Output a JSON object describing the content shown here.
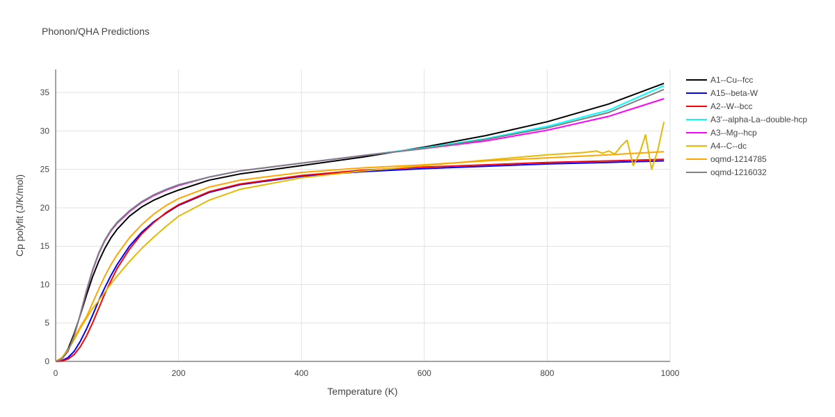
{
  "chart_data": {
    "type": "line",
    "title": "Phonon/QHA Predictions",
    "xlabel": "Temperature (K)",
    "ylabel": "Cp polyfit (J/K/mol)",
    "xlim": [
      0,
      1000
    ],
    "ylim": [
      0,
      38
    ],
    "xticks": [
      0,
      200,
      400,
      600,
      800,
      1000
    ],
    "yticks": [
      0,
      5,
      10,
      15,
      20,
      25,
      30,
      35
    ],
    "grid": true,
    "legend_position": "right",
    "series": [
      {
        "name": "A1--Cu--fcc",
        "color": "#000000",
        "x": [
          0,
          10,
          20,
          30,
          40,
          50,
          60,
          70,
          80,
          90,
          100,
          120,
          140,
          160,
          180,
          200,
          250,
          300,
          400,
          500,
          600,
          700,
          800,
          900,
          990
        ],
        "y": [
          0,
          0.4,
          1.6,
          3.6,
          6.0,
          8.6,
          11.0,
          13.0,
          14.7,
          16.1,
          17.2,
          18.9,
          20.1,
          21.0,
          21.7,
          22.3,
          23.6,
          24.4,
          25.5,
          26.6,
          27.9,
          29.4,
          31.2,
          33.5,
          36.2
        ]
      },
      {
        "name": "A15--beta-W",
        "color": "#0000ff",
        "x": [
          0,
          10,
          20,
          30,
          40,
          50,
          60,
          70,
          80,
          90,
          100,
          120,
          140,
          160,
          180,
          200,
          250,
          300,
          400,
          500,
          600,
          700,
          800,
          900,
          990
        ],
        "y": [
          0,
          0.1,
          0.5,
          1.3,
          2.6,
          4.2,
          6.0,
          7.9,
          9.6,
          11.2,
          12.6,
          15.0,
          16.8,
          18.2,
          19.3,
          20.3,
          22.0,
          23.0,
          24.1,
          24.7,
          25.1,
          25.4,
          25.7,
          25.9,
          26.1
        ]
      },
      {
        "name": "A2--W--bcc",
        "color": "#ff0000",
        "x": [
          0,
          10,
          20,
          30,
          40,
          50,
          60,
          70,
          80,
          90,
          100,
          120,
          140,
          160,
          180,
          200,
          250,
          300,
          400,
          500,
          600,
          700,
          800,
          900,
          990
        ],
        "y": [
          0,
          0.05,
          0.3,
          0.9,
          1.9,
          3.3,
          5.0,
          6.9,
          8.8,
          10.5,
          12.1,
          14.6,
          16.6,
          18.1,
          19.4,
          20.4,
          22.1,
          23.1,
          24.2,
          24.9,
          25.3,
          25.6,
          25.9,
          26.1,
          26.3
        ]
      },
      {
        "name": "A3'--alpha-La--double-hcp",
        "color": "#00ffff",
        "x": [
          0,
          10,
          20,
          30,
          40,
          50,
          60,
          70,
          80,
          90,
          100,
          120,
          140,
          160,
          180,
          200,
          250,
          300,
          400,
          500,
          600,
          700,
          800,
          900,
          990
        ],
        "y": [
          0,
          0.3,
          1.3,
          3.3,
          6.1,
          9.2,
          11.9,
          14.1,
          15.8,
          17.1,
          18.1,
          19.6,
          20.8,
          21.7,
          22.4,
          23.0,
          24.0,
          24.8,
          25.8,
          26.8,
          27.8,
          29.0,
          30.6,
          32.7,
          35.9
        ]
      },
      {
        "name": "A3--Mg--hcp",
        "color": "#ff00ff",
        "x": [
          0,
          10,
          20,
          30,
          40,
          50,
          60,
          70,
          80,
          90,
          100,
          120,
          140,
          160,
          180,
          200,
          250,
          300,
          400,
          500,
          600,
          700,
          800,
          900,
          990
        ],
        "y": [
          0,
          0.3,
          1.3,
          3.3,
          6.1,
          9.1,
          11.8,
          14.0,
          15.7,
          17.0,
          18.0,
          19.5,
          20.7,
          21.6,
          22.3,
          22.9,
          24.0,
          24.8,
          25.8,
          26.8,
          27.7,
          28.7,
          30.1,
          31.9,
          34.2
        ]
      },
      {
        "name": "A4--C--dc",
        "color": "#e6b800",
        "x": [
          0,
          10,
          20,
          30,
          40,
          50,
          60,
          70,
          80,
          90,
          100,
          120,
          140,
          160,
          180,
          200,
          250,
          300,
          400,
          500,
          600,
          700,
          800,
          860,
          880,
          890,
          900,
          910,
          920,
          930,
          940,
          950,
          960,
          970,
          980,
          990
        ],
        "y": [
          0,
          0.5,
          1.5,
          2.8,
          4.3,
          5.6,
          6.9,
          7.9,
          9.0,
          10.1,
          11.1,
          13.0,
          14.7,
          16.2,
          17.6,
          18.9,
          21.0,
          22.4,
          23.9,
          24.8,
          25.5,
          26.2,
          26.9,
          27.2,
          27.4,
          27.1,
          27.4,
          27.0,
          28.0,
          28.8,
          25.5,
          27.0,
          29.5,
          25.0,
          27.5,
          31.2
        ]
      },
      {
        "name": "oqmd-1214785",
        "color": "#ffa500",
        "x": [
          0,
          10,
          20,
          30,
          40,
          50,
          60,
          70,
          80,
          90,
          100,
          120,
          140,
          160,
          180,
          200,
          250,
          300,
          400,
          500,
          600,
          700,
          800,
          900,
          990
        ],
        "y": [
          0,
          0.4,
          1.5,
          3.0,
          4.5,
          5.8,
          7.6,
          9.4,
          11.1,
          12.6,
          13.9,
          16.1,
          17.8,
          19.2,
          20.3,
          21.2,
          22.7,
          23.6,
          24.6,
          25.2,
          25.6,
          26.1,
          26.5,
          26.9,
          27.3
        ]
      },
      {
        "name": "oqmd-1216032",
        "color": "#808080",
        "x": [
          0,
          10,
          20,
          30,
          40,
          50,
          60,
          70,
          80,
          90,
          100,
          120,
          140,
          160,
          180,
          200,
          250,
          300,
          400,
          500,
          600,
          700,
          800,
          900,
          990
        ],
        "y": [
          0,
          0.3,
          1.3,
          3.3,
          6.1,
          9.2,
          11.9,
          14.1,
          15.8,
          17.1,
          18.1,
          19.6,
          20.8,
          21.7,
          22.4,
          23.0,
          24.0,
          24.8,
          25.8,
          26.8,
          27.7,
          28.9,
          30.4,
          32.4,
          35.4
        ]
      }
    ]
  }
}
